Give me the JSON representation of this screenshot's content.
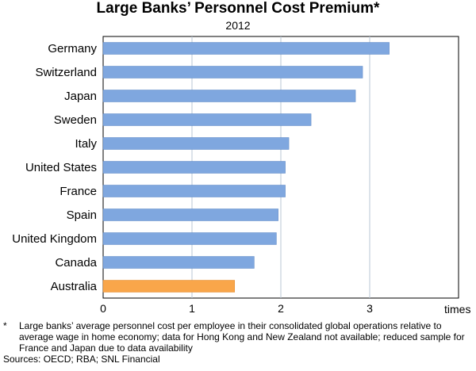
{
  "title": "Large Banks’ Personnel Cost Premium*",
  "subtitle": "2012",
  "footnote": {
    "marker": "*",
    "text": "Large banks’ average personnel cost per employee in their consolidated global operations relative to average wage in home economy; data for Hong Kong and New Zealand not available; reduced sample for France and Japan due to data availability"
  },
  "sources": "Sources: OECD; RBA; SNL Financial",
  "chart_data": {
    "type": "bar",
    "orientation": "horizontal",
    "categories": [
      "Germany",
      "Switzerland",
      "Japan",
      "Sweden",
      "Italy",
      "United States",
      "France",
      "Spain",
      "United Kingdom",
      "Canada",
      "Australia"
    ],
    "series": [
      {
        "values": [
          3.22,
          2.92,
          2.84,
          2.34,
          2.09,
          2.05,
          2.05,
          1.97,
          1.95,
          1.7,
          1.48
        ]
      }
    ],
    "highlight_category": "Australia",
    "xlim": [
      0,
      4
    ],
    "xticks": [
      0,
      1,
      2,
      3
    ],
    "xlabel": "times",
    "grid": true,
    "colors": {
      "bar": "#7fa7df",
      "bar_stroke": "#5b86c4",
      "highlight": "#f9a64a",
      "highlight_stroke": "#e08a2e",
      "grid": "#b8c7d6",
      "axis": "#000000"
    }
  }
}
